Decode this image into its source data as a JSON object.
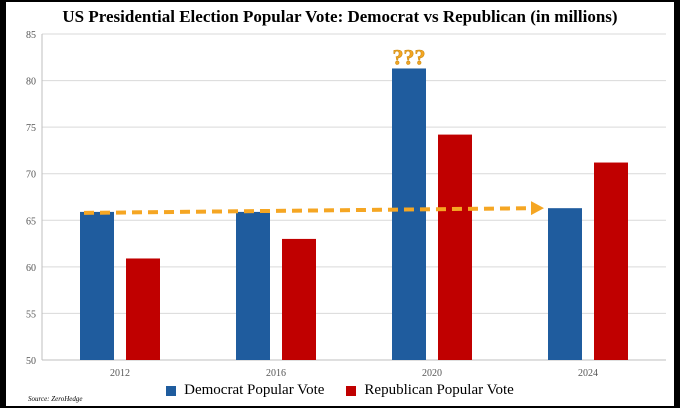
{
  "chart_data": {
    "type": "bar",
    "title": "US Presidential Election Popular Vote: Democrat vs Republican (in millions)",
    "categories": [
      "2012",
      "2016",
      "2020",
      "2024"
    ],
    "series": [
      {
        "name": "Democrat Popular Vote",
        "color": "#1f5c9e",
        "values": [
          65.9,
          65.9,
          81.3,
          66.3
        ]
      },
      {
        "name": "Republican Popular Vote",
        "color": "#c00000",
        "values": [
          60.9,
          63.0,
          74.2,
          71.2
        ]
      }
    ],
    "ylim": [
      50,
      85
    ],
    "yticks": [
      "50",
      "55",
      "60",
      "65",
      "70",
      "75",
      "80",
      "85"
    ],
    "grid": true,
    "legend_position": "bottom",
    "annotations": [
      {
        "type": "text",
        "text": "???",
        "category": "2020",
        "color": "#f5a623"
      },
      {
        "type": "dashed-arrow",
        "from_category": "2012",
        "to_category": "2024",
        "from_value": 65.9,
        "to_value": 66.3,
        "color": "#f5a623"
      }
    ],
    "source": "Source: ZeroHedge"
  }
}
